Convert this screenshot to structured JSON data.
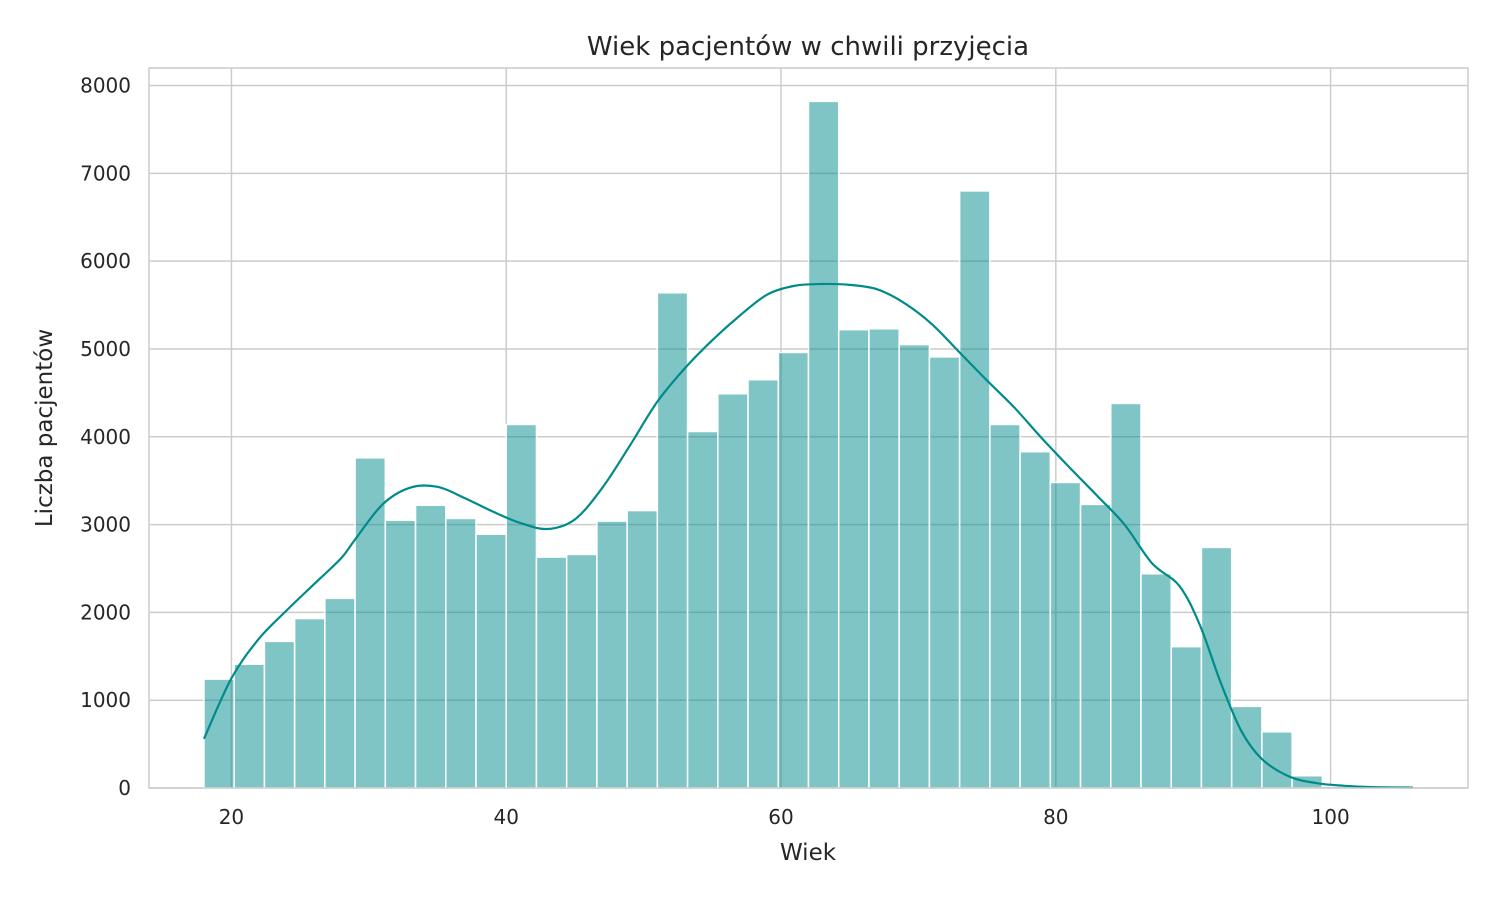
{
  "chart_data": {
    "type": "bar",
    "title": "Wiek pacjentów w chwili przyjęcia",
    "xlabel": "Wiek",
    "ylabel": "Liczba pacjentów",
    "xlim": [
      14,
      110
    ],
    "ylim": [
      0,
      8200
    ],
    "xticks": [
      20,
      40,
      60,
      80,
      100
    ],
    "yticks": [
      0,
      1000,
      2000,
      3000,
      4000,
      5000,
      6000,
      7000,
      8000
    ],
    "grid": true,
    "legend": "none",
    "bin_edges": [
      18,
      20.2,
      22.4,
      24.6,
      26.8,
      29,
      31.2,
      33.4,
      35.6,
      37.8,
      40,
      42.2,
      44.4,
      46.6,
      48.8,
      51,
      53.2,
      55.4,
      57.6,
      59.8,
      62,
      64.2,
      66.4,
      68.6,
      70.8,
      73,
      75.2,
      77.4,
      79.6,
      81.8,
      84,
      86.2,
      88.4,
      90.6,
      92.8,
      95,
      97.2,
      99.4,
      101.6,
      103.8,
      106
    ],
    "counts": [
      1240,
      1410,
      1670,
      1930,
      2160,
      3760,
      3050,
      3220,
      3070,
      2890,
      4140,
      2630,
      2660,
      3040,
      3160,
      5640,
      4060,
      4490,
      4650,
      4960,
      7820,
      5220,
      5230,
      5050,
      4910,
      6800,
      4140,
      3830,
      3480,
      3230,
      4380,
      2440,
      1610,
      2740,
      930,
      640,
      140,
      20,
      10,
      10
    ],
    "kde": {
      "x": [
        18,
        20,
        22,
        24,
        26,
        28,
        29,
        31,
        33,
        35,
        37,
        39,
        41,
        43,
        45,
        47,
        49,
        51,
        53,
        55,
        57,
        59,
        61,
        63,
        65,
        67,
        69,
        71,
        73,
        75,
        77,
        79,
        81,
        83,
        85,
        87,
        89,
        90.5,
        92,
        93.5,
        95,
        97,
        99,
        101,
        103,
        106
      ],
      "y": [
        560,
        1250,
        1700,
        2020,
        2320,
        2620,
        2830,
        3230,
        3420,
        3430,
        3300,
        3150,
        3020,
        2950,
        3060,
        3420,
        3900,
        4400,
        4780,
        5100,
        5380,
        5620,
        5720,
        5740,
        5730,
        5680,
        5520,
        5280,
        4960,
        4640,
        4330,
        3980,
        3650,
        3330,
        3000,
        2560,
        2300,
        1850,
        1200,
        650,
        330,
        130,
        55,
        25,
        10,
        5
      ]
    },
    "colors": {
      "bar_fill": "#008b8b",
      "bar_opacity": 0.5,
      "kde_line": "#008b8b",
      "grid": "#cccccc",
      "spine": "#cccccc",
      "text": "#262626"
    }
  }
}
